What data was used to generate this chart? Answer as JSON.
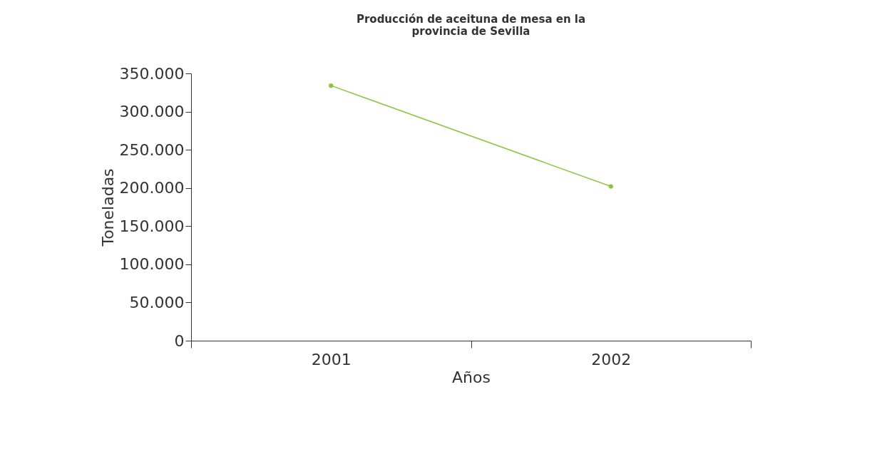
{
  "chart_data": {
    "type": "line",
    "title": [
      "Producción de aceituna de mesa en la",
      "provincia de Sevilla"
    ],
    "xlabel": "Años",
    "ylabel": "Toneladas",
    "categories": [
      "2001",
      "2002"
    ],
    "series": [
      {
        "color": "#8cc63e",
        "values": [
          334000,
          202000
        ]
      }
    ],
    "ylim": [
      0,
      350000
    ],
    "yticks": [
      {
        "value": 0,
        "label": "0"
      },
      {
        "value": 50000,
        "label": "50.000"
      },
      {
        "value": 100000,
        "label": "100.000"
      },
      {
        "value": 150000,
        "label": "150.000"
      },
      {
        "value": 200000,
        "label": "200.000"
      },
      {
        "value": 250000,
        "label": "250.000"
      },
      {
        "value": 300000,
        "label": "300.000"
      },
      {
        "value": 350000,
        "label": "350.000"
      }
    ],
    "grid": false,
    "marker": "circle",
    "line_style": "solid"
  }
}
